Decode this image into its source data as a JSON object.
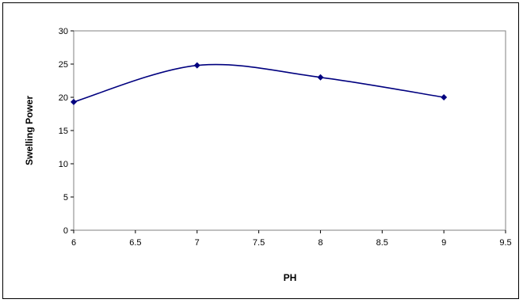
{
  "chart_data": {
    "type": "line",
    "title": "",
    "xlabel": "PH",
    "ylabel": "Swelling Power",
    "xlim": [
      6,
      9.5
    ],
    "ylim": [
      0,
      30
    ],
    "x_ticks": [
      "6",
      "6.5",
      "7",
      "7.5",
      "8",
      "8.5",
      "9",
      "9.5"
    ],
    "y_ticks": [
      "0",
      "5",
      "10",
      "15",
      "20",
      "25",
      "30"
    ],
    "grid": false,
    "legend": "none",
    "series": [
      {
        "x": [
          6,
          7,
          8,
          9
        ],
        "values": [
          19.3,
          24.8,
          23.0,
          20.0
        ],
        "color": "#00007f",
        "smooth": true,
        "marker": "diamond"
      }
    ]
  }
}
